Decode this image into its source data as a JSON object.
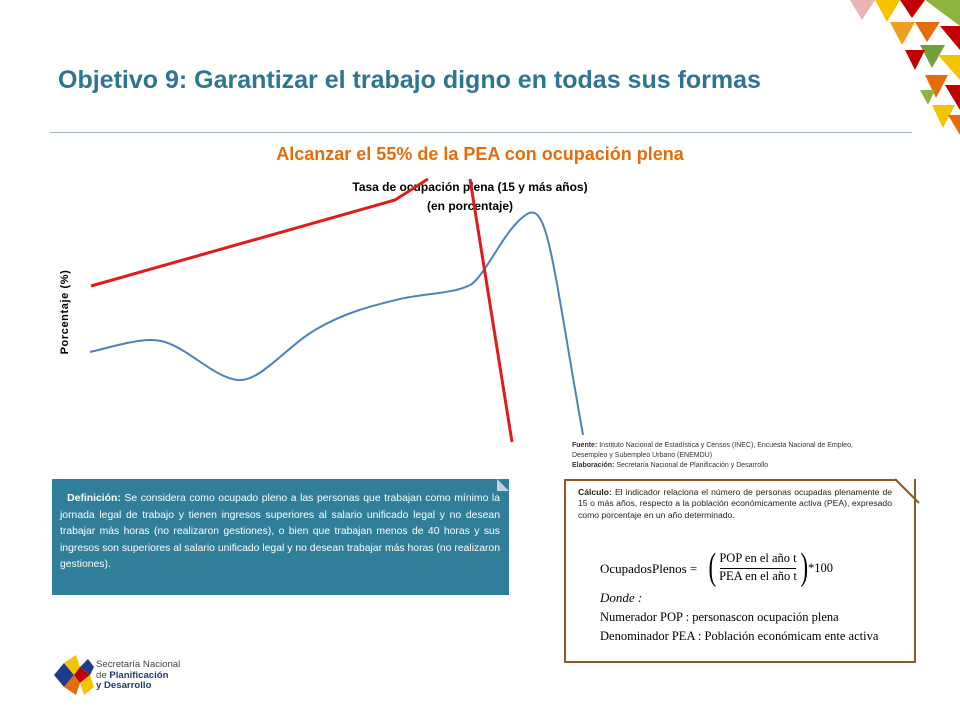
{
  "header": {
    "title": "Objetivo 9: Garantizar el trabajo digno en todas sus formas",
    "subtitle": "Alcanzar el 55% de la PEA con ocupación plena"
  },
  "chart_data": {
    "type": "line",
    "title": "Tasa de ocupación plena (15 y más años)",
    "subtitle": "(en porcentaje)",
    "ylabel": "Porcentaje (%)",
    "xlabel": "",
    "grid": false,
    "legend": "none",
    "series": [
      {
        "color": "#4f81bd"
      },
      {
        "color": "#e01b1b"
      }
    ]
  },
  "source": {
    "fuente_label": "Fuente:",
    "fuente_text": "Instituto Nacional de Estadística y Censos (INEC), Encuesta Nacional de Empleo, Desempleo y Subempleo Urbano (ENEMDU)",
    "elab_label": "Elaboración:",
    "elab_text": "Secretaría Nacional de Planificación y Desarrollo"
  },
  "definition": {
    "label": "Definición:",
    "text": "Se considera como ocupado pleno a las personas que trabajan como mínimo la jornada legal de trabajo y tienen ingresos superiores al salario unificado legal y no desean trabajar más horas (no realizaron gestiones), o bien que trabajan menos de 40 horas y sus ingresos son superiores al salario unificado legal y no desean trabajar más horas (no realizaron gestiones)."
  },
  "calculation": {
    "label": "Cálculo:",
    "text": "El indicador relaciona el número de personas ocupadas plenamente de 15 o más años, respecto a la población económicamente activa (PEA), expresado como porcentaje en un año determinado.",
    "lhs": "OcupadosPlenos =",
    "numerator": "POP en el año t",
    "denominator": "PEA en el año t",
    "multiplier": "*100",
    "where": "Donde :",
    "numerator_def": "Numerador POP : personascon ocupación plena",
    "denominator_def": "Denominador  PEA : Población económicam ente activa"
  },
  "logo": {
    "line1": "Secretaría Nacional",
    "line2": "de Planificación",
    "line3": "y Desarrollo"
  },
  "colors": {
    "title": "#2e7591",
    "subtitle": "#e46c0a",
    "definition_box": "#317e9a",
    "calc_border": "#8a5a2b"
  }
}
